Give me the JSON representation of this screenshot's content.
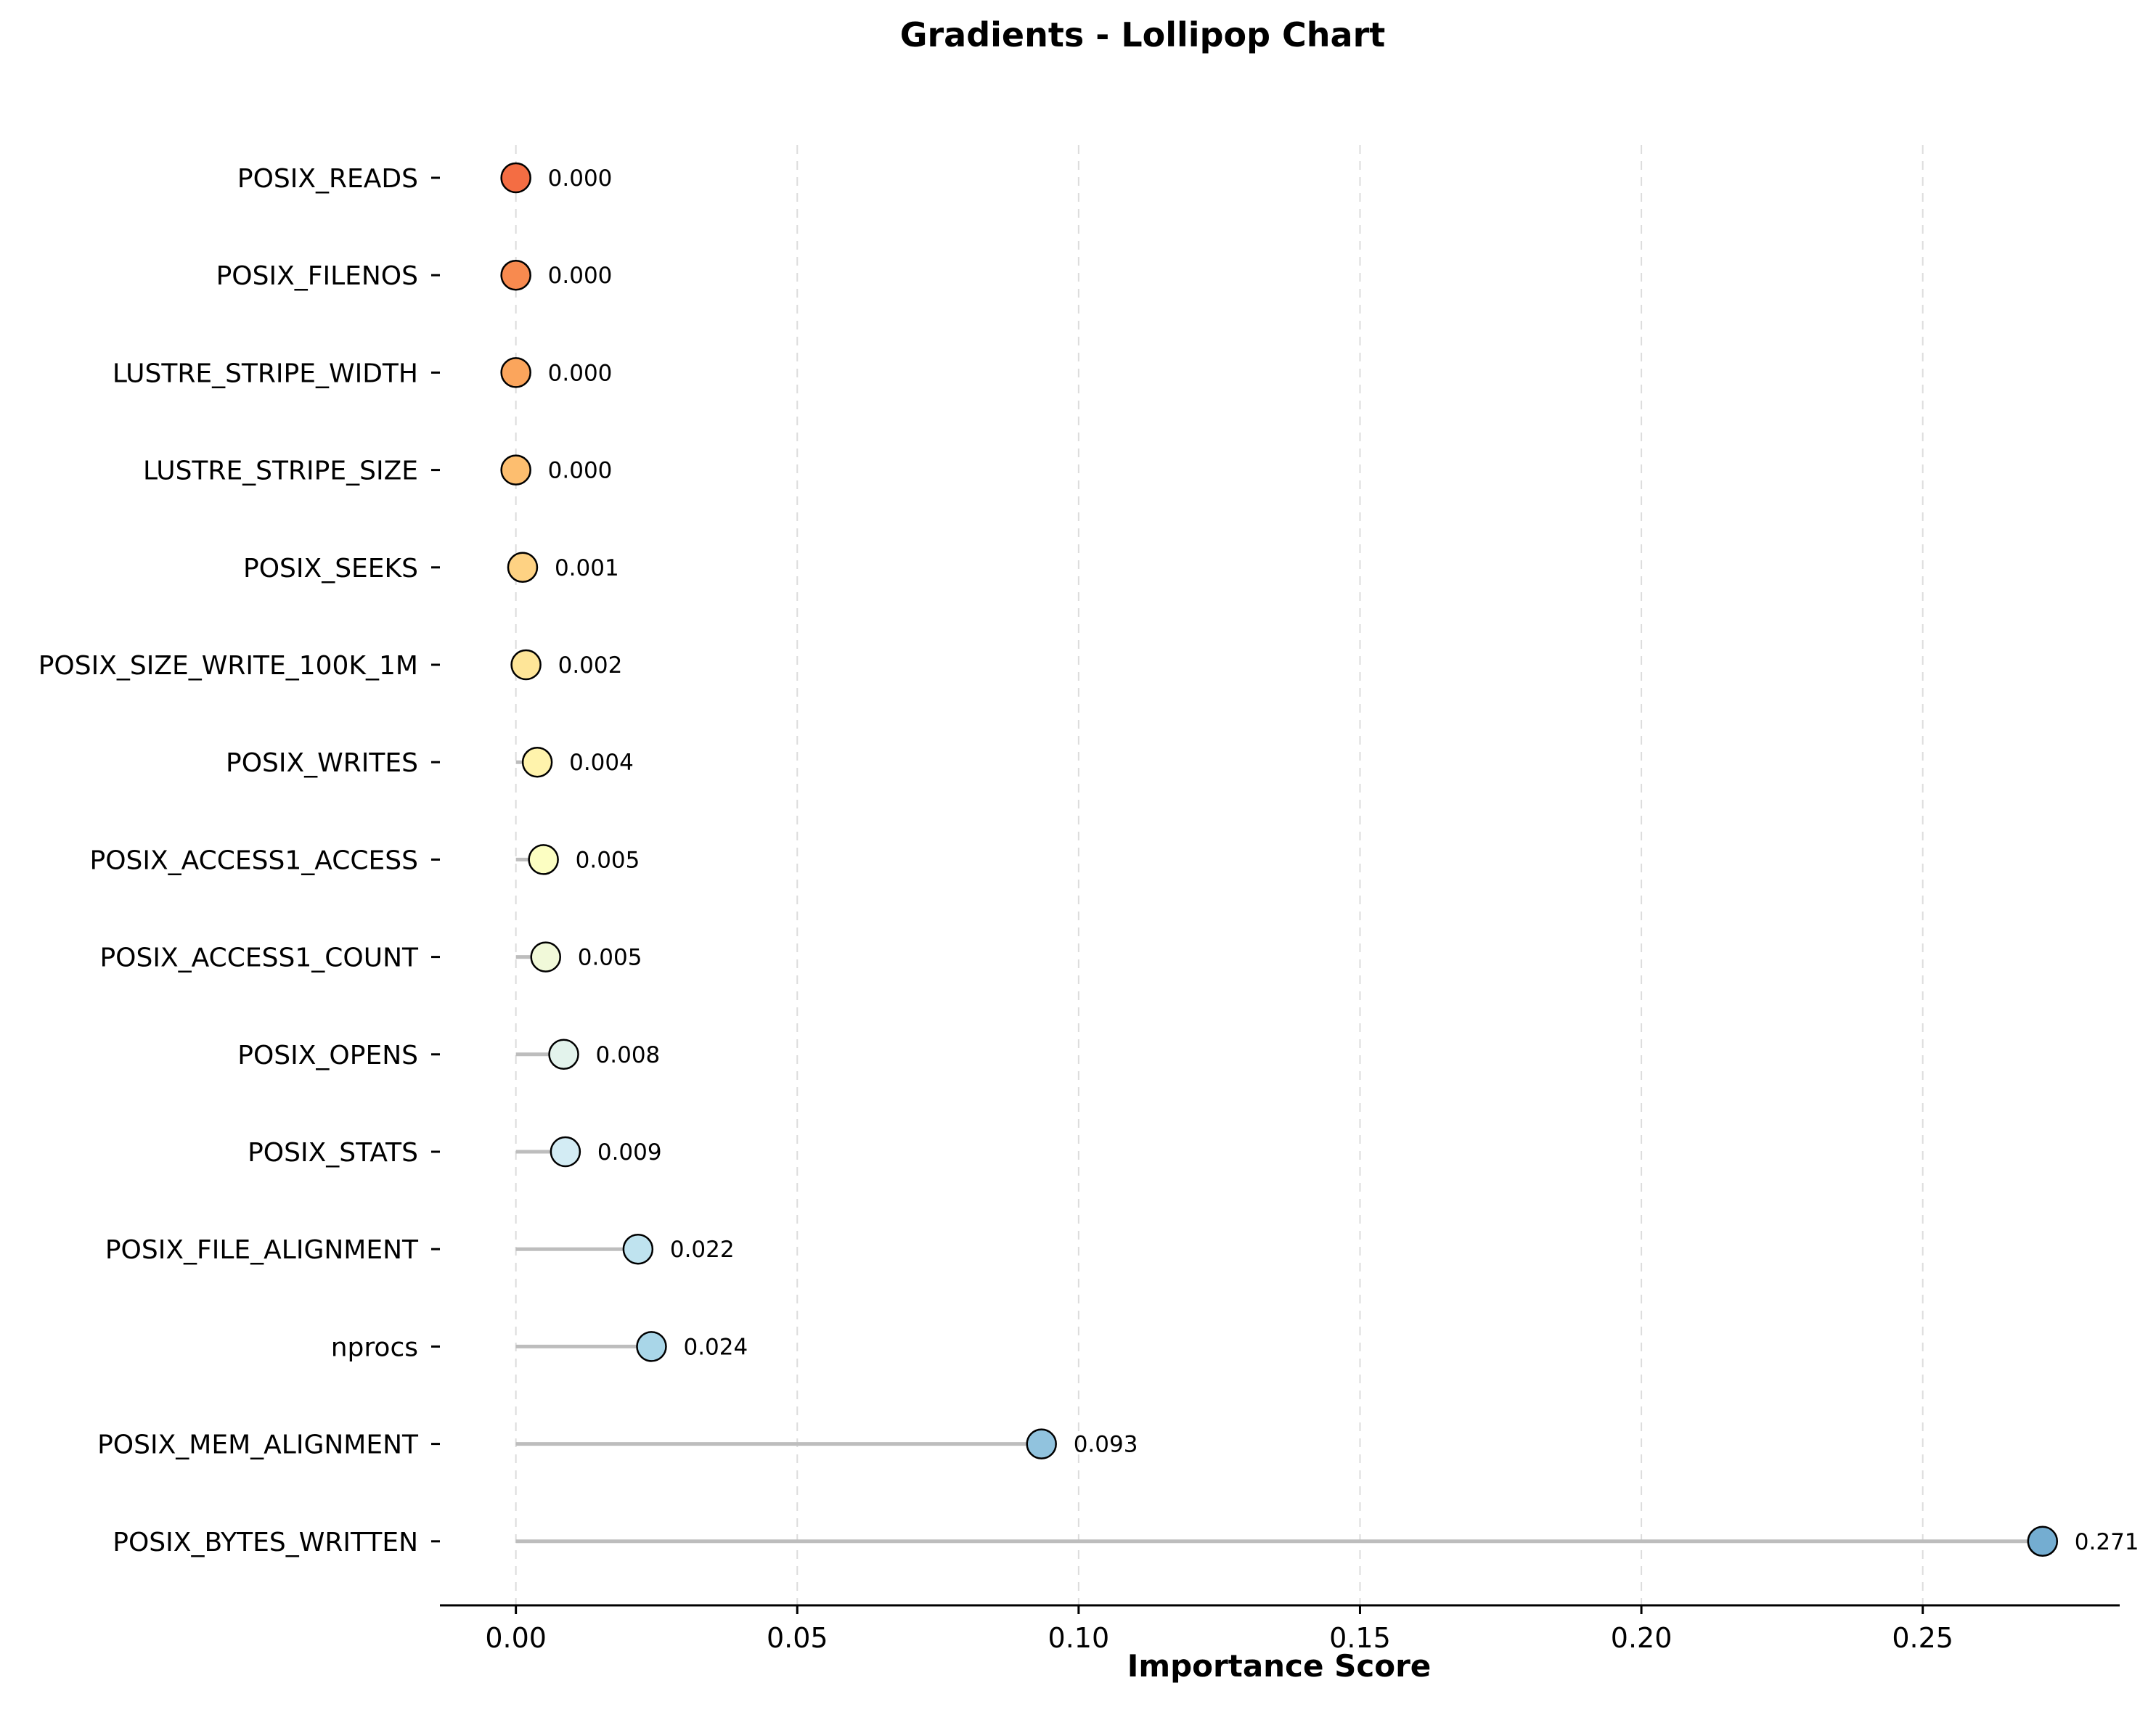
{
  "chart_data": {
    "type": "lollipop",
    "title": "Gradients - Lollipop Chart",
    "xlabel": "Importance Score",
    "ylabel": "",
    "xlim": [
      -0.0135,
      0.285
    ],
    "xticks": [
      {
        "value": 0.0,
        "label": "0.00"
      },
      {
        "value": 0.05,
        "label": "0.05"
      },
      {
        "value": 0.1,
        "label": "0.10"
      },
      {
        "value": 0.15,
        "label": "0.15"
      },
      {
        "value": 0.2,
        "label": "0.20"
      },
      {
        "value": 0.25,
        "label": "0.25"
      }
    ],
    "grid": "vertical dashed",
    "categories": [
      {
        "name": "POSIX_READS",
        "value": 0.0,
        "label": "0.000",
        "color": "#f46d43"
      },
      {
        "name": "POSIX_FILENOS",
        "value": 0.0,
        "label": "0.000",
        "color": "#f88a4f"
      },
      {
        "name": "LUSTRE_STRIPE_WIDTH",
        "value": 0.0,
        "label": "0.000",
        "color": "#fba55c"
      },
      {
        "name": "LUSTRE_STRIPE_SIZE",
        "value": 0.0,
        "label": "0.000",
        "color": "#fdbe6f"
      },
      {
        "name": "POSIX_SEEKS",
        "value": 0.0012,
        "label": "0.001",
        "color": "#fed283"
      },
      {
        "name": "POSIX_SIZE_WRITE_100K_1M",
        "value": 0.0018,
        "label": "0.002",
        "color": "#fee598"
      },
      {
        "name": "POSIX_WRITES",
        "value": 0.0038,
        "label": "0.004",
        "color": "#fff3ac"
      },
      {
        "name": "POSIX_ACCESS1_ACCESS",
        "value": 0.0049,
        "label": "0.005",
        "color": "#fcfec2"
      },
      {
        "name": "POSIX_ACCESS1_COUNT",
        "value": 0.0053,
        "label": "0.005",
        "color": "#f1f9d9"
      },
      {
        "name": "POSIX_OPENS",
        "value": 0.0085,
        "label": "0.008",
        "color": "#e3f3ec"
      },
      {
        "name": "POSIX_STATS",
        "value": 0.0088,
        "label": "0.009",
        "color": "#d3ecf4"
      },
      {
        "name": "POSIX_FILE_ALIGNMENT",
        "value": 0.0217,
        "label": "0.022",
        "color": "#bfe3ef"
      },
      {
        "name": "nprocs",
        "value": 0.0241,
        "label": "0.024",
        "color": "#a9d6e8"
      },
      {
        "name": "POSIX_MEM_ALIGNMENT",
        "value": 0.0934,
        "label": "0.093",
        "color": "#91c3de"
      },
      {
        "name": "POSIX_BYTES_WRITTEN",
        "value": 0.2713,
        "label": "0.271",
        "color": "#74add1"
      }
    ]
  }
}
